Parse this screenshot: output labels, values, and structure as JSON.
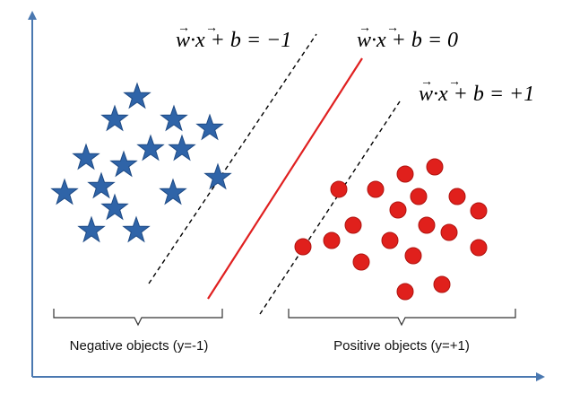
{
  "equations": {
    "negative_margin": "w·x + b = −1",
    "decision_boundary": "w·x + b = 0",
    "positive_margin": "w·x + b = +1"
  },
  "groups": {
    "negative_label": "Negative objects (y=-1)",
    "positive_label": "Positive objects (y=+1)"
  },
  "colors": {
    "axis": "#4a78b0",
    "star": "#2f64a8",
    "star_stroke": "#1e4a85",
    "circle": "#e0201c",
    "circle_stroke": "#b01410",
    "boundary": "#e02020",
    "margin": "#000000",
    "brace": "#333333"
  },
  "icons": {
    "negative_marker": "star-icon",
    "positive_marker": "circle-icon"
  }
}
